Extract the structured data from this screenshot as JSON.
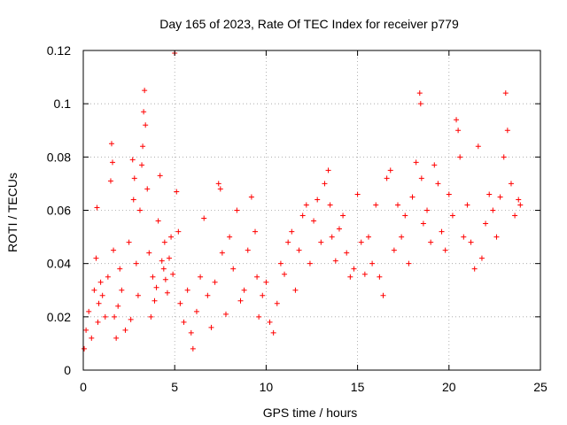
{
  "chart_data": {
    "type": "scatter",
    "title": "Day 165 of 2023, Rate Of TEC Index for receiver p779",
    "xlabel": "GPS time / hours",
    "ylabel": "ROTI / TECUs",
    "xlim": [
      0,
      25
    ],
    "ylim": [
      0,
      0.12
    ],
    "xticks": [
      0,
      5,
      10,
      15,
      20,
      25
    ],
    "xtick_labels": [
      "0",
      "5",
      "10",
      "15",
      "20",
      "25"
    ],
    "yticks": [
      0,
      0.02,
      0.04,
      0.06,
      0.08,
      0.1,
      0.12
    ],
    "ytick_labels": [
      "0",
      "0.02",
      "0.04",
      "0.06",
      "0.08",
      "0.1",
      "0.12"
    ],
    "grid": true,
    "marker": "plus",
    "color": "#ff0000",
    "series": [
      {
        "name": "ROTI",
        "x": [
          0.05,
          0.15,
          0.3,
          0.45,
          0.6,
          0.7,
          0.75,
          0.8,
          0.85,
          0.95,
          1.05,
          1.2,
          1.35,
          1.5,
          1.55,
          1.6,
          1.65,
          1.7,
          1.8,
          1.9,
          2.0,
          2.1,
          2.3,
          2.5,
          2.6,
          2.7,
          2.75,
          2.8,
          2.9,
          3.0,
          3.1,
          3.2,
          3.25,
          3.3,
          3.35,
          3.4,
          3.5,
          3.6,
          3.7,
          3.8,
          3.9,
          4.0,
          4.1,
          4.2,
          4.3,
          4.4,
          4.45,
          4.5,
          4.6,
          4.7,
          4.8,
          4.9,
          5.0,
          5.1,
          5.2,
          5.3,
          5.5,
          5.7,
          5.9,
          6.0,
          6.2,
          6.4,
          6.6,
          6.8,
          7.0,
          7.2,
          7.4,
          7.5,
          7.6,
          7.8,
          8.0,
          8.2,
          8.4,
          8.6,
          8.8,
          9.0,
          9.2,
          9.4,
          9.5,
          9.6,
          9.8,
          10.0,
          10.2,
          10.4,
          10.6,
          10.8,
          11.0,
          11.2,
          11.4,
          11.6,
          11.8,
          12.0,
          12.2,
          12.4,
          12.6,
          12.8,
          13.0,
          13.2,
          13.4,
          13.5,
          13.6,
          13.8,
          14.0,
          14.2,
          14.4,
          14.6,
          14.8,
          15.0,
          15.2,
          15.4,
          15.6,
          15.8,
          16.0,
          16.2,
          16.4,
          16.6,
          16.8,
          17.0,
          17.2,
          17.4,
          17.6,
          17.8,
          18.0,
          18.2,
          18.4,
          18.45,
          18.5,
          18.6,
          18.8,
          19.0,
          19.2,
          19.4,
          19.6,
          19.8,
          20.0,
          20.2,
          20.4,
          20.5,
          20.6,
          20.8,
          21.0,
          21.2,
          21.4,
          21.6,
          21.8,
          22.0,
          22.2,
          22.4,
          22.6,
          22.8,
          23.0,
          23.1,
          23.2,
          23.4,
          23.6,
          23.8,
          23.9
        ],
        "y": [
          0.008,
          0.015,
          0.022,
          0.012,
          0.03,
          0.042,
          0.061,
          0.018,
          0.025,
          0.033,
          0.028,
          0.02,
          0.035,
          0.071,
          0.085,
          0.078,
          0.045,
          0.02,
          0.012,
          0.024,
          0.038,
          0.03,
          0.015,
          0.048,
          0.019,
          0.079,
          0.064,
          0.072,
          0.04,
          0.028,
          0.06,
          0.077,
          0.084,
          0.097,
          0.105,
          0.092,
          0.068,
          0.044,
          0.02,
          0.035,
          0.026,
          0.031,
          0.056,
          0.073,
          0.041,
          0.038,
          0.048,
          0.034,
          0.029,
          0.042,
          0.05,
          0.036,
          0.119,
          0.067,
          0.052,
          0.025,
          0.018,
          0.03,
          0.014,
          0.008,
          0.022,
          0.035,
          0.057,
          0.028,
          0.016,
          0.033,
          0.07,
          0.068,
          0.044,
          0.021,
          0.05,
          0.038,
          0.06,
          0.026,
          0.03,
          0.045,
          0.065,
          0.052,
          0.035,
          0.02,
          0.028,
          0.033,
          0.018,
          0.014,
          0.025,
          0.04,
          0.036,
          0.048,
          0.052,
          0.03,
          0.045,
          0.058,
          0.062,
          0.04,
          0.056,
          0.064,
          0.048,
          0.07,
          0.075,
          0.062,
          0.05,
          0.041,
          0.053,
          0.058,
          0.044,
          0.035,
          0.038,
          0.066,
          0.048,
          0.036,
          0.05,
          0.04,
          0.062,
          0.035,
          0.028,
          0.072,
          0.075,
          0.045,
          0.062,
          0.05,
          0.058,
          0.04,
          0.065,
          0.078,
          0.104,
          0.1,
          0.072,
          0.055,
          0.06,
          0.048,
          0.077,
          0.07,
          0.052,
          0.045,
          0.066,
          0.058,
          0.094,
          0.09,
          0.08,
          0.05,
          0.062,
          0.048,
          0.038,
          0.084,
          0.042,
          0.055,
          0.066,
          0.06,
          0.05,
          0.065,
          0.08,
          0.104,
          0.09,
          0.07,
          0.058,
          0.064,
          0.062
        ]
      }
    ]
  }
}
